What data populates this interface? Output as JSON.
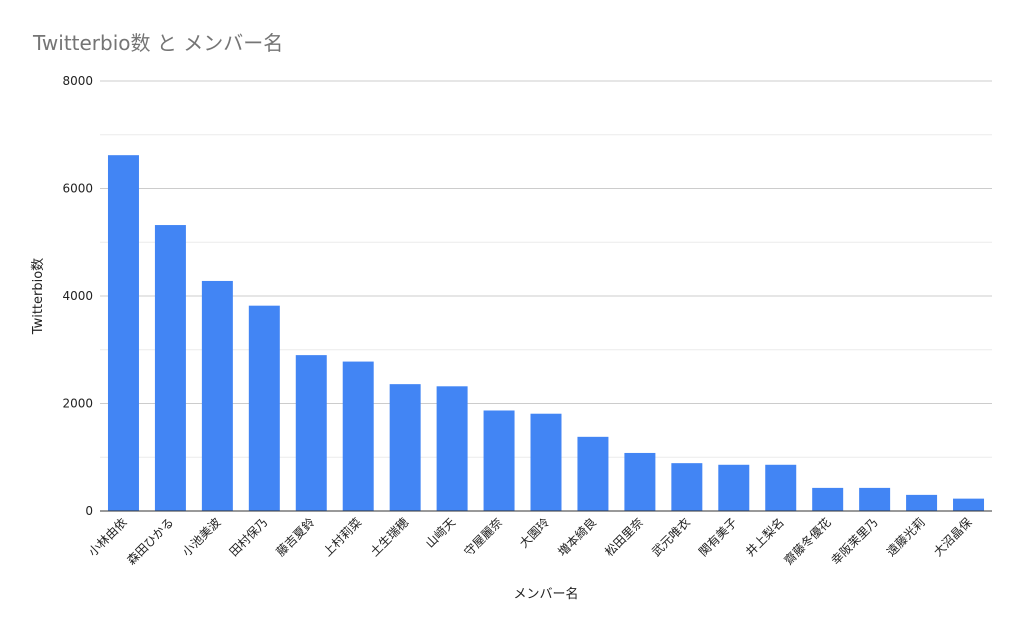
{
  "chart_data": {
    "type": "bar",
    "title": "Twitterbio数 と メンバー名",
    "xlabel": "メンバー名",
    "ylabel": "Twitterbio数",
    "ylim": [
      0,
      8000
    ],
    "yticks": [
      "0",
      "2000",
      "4000",
      "6000",
      "8000"
    ],
    "grid": true,
    "legend": "none",
    "bar_color": "#4285f4",
    "categories": [
      "小林由依",
      "森田ひかる",
      "小池美波",
      "田村保乃",
      "藤吉夏鈴",
      "上村莉菜",
      "土生瑞穂",
      "山﨑天",
      "守屋麗奈",
      "大園玲",
      "増本綺良",
      "松田里奈",
      "武元唯衣",
      "関有美子",
      "井上梨名",
      "齋藤冬優花",
      "幸阪茉里乃",
      "遠藤光莉",
      "大沼晶保"
    ],
    "series": [
      {
        "values": [
          6620,
          5320,
          4280,
          3820,
          2900,
          2780,
          2360,
          2320,
          1870,
          1810,
          1380,
          1080,
          890,
          860,
          860,
          430,
          430,
          300,
          230
        ]
      }
    ]
  }
}
